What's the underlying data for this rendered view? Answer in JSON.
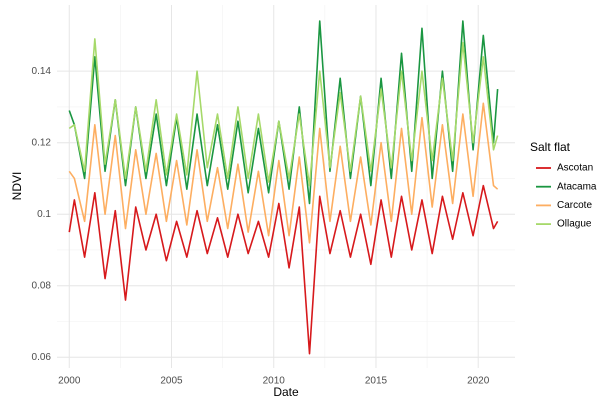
{
  "chart_data": {
    "type": "line",
    "x_label": "Date",
    "y_label": "NDVI",
    "legend_title": "Salt flat",
    "legend_position": "right",
    "grid": true,
    "x": [
      2000,
      2000.25,
      2000.75,
      2001.25,
      2001.75,
      2002.25,
      2002.75,
      2003.25,
      2003.75,
      2004.25,
      2004.75,
      2005.25,
      2005.75,
      2006.25,
      2006.75,
      2007.25,
      2007.75,
      2008.25,
      2008.75,
      2009.25,
      2009.75,
      2010.25,
      2010.75,
      2011.25,
      2011.75,
      2012.25,
      2012.75,
      2013.25,
      2013.75,
      2014.25,
      2014.75,
      2015.25,
      2015.75,
      2016.25,
      2016.75,
      2017.25,
      2017.75,
      2018.25,
      2018.75,
      2019.25,
      2019.75,
      2020.25,
      2020.75,
      2020.95
    ],
    "series": [
      {
        "name": "Ascotan",
        "color": "#d7191c",
        "values": [
          0.095,
          0.104,
          0.088,
          0.106,
          0.082,
          0.101,
          0.076,
          0.102,
          0.09,
          0.1,
          0.087,
          0.098,
          0.088,
          0.101,
          0.089,
          0.099,
          0.088,
          0.1,
          0.089,
          0.098,
          0.088,
          0.103,
          0.085,
          0.102,
          0.061,
          0.105,
          0.089,
          0.101,
          0.088,
          0.1,
          0.086,
          0.104,
          0.088,
          0.105,
          0.09,
          0.104,
          0.089,
          0.105,
          0.093,
          0.106,
          0.094,
          0.108,
          0.096,
          0.098
        ]
      },
      {
        "name": "Atacama",
        "color": "#1a9641",
        "values": [
          0.129,
          0.125,
          0.11,
          0.144,
          0.112,
          0.132,
          0.108,
          0.13,
          0.11,
          0.128,
          0.108,
          0.127,
          0.107,
          0.128,
          0.108,
          0.125,
          0.107,
          0.126,
          0.106,
          0.124,
          0.106,
          0.126,
          0.107,
          0.13,
          0.103,
          0.154,
          0.112,
          0.138,
          0.11,
          0.133,
          0.108,
          0.138,
          0.11,
          0.145,
          0.112,
          0.152,
          0.11,
          0.14,
          0.112,
          0.154,
          0.118,
          0.15,
          0.12,
          0.135
        ]
      },
      {
        "name": "Carcote",
        "color": "#fdae61",
        "values": [
          0.112,
          0.11,
          0.098,
          0.125,
          0.1,
          0.122,
          0.096,
          0.118,
          0.1,
          0.117,
          0.098,
          0.115,
          0.097,
          0.118,
          0.098,
          0.113,
          0.096,
          0.114,
          0.095,
          0.112,
          0.094,
          0.115,
          0.094,
          0.116,
          0.092,
          0.124,
          0.098,
          0.119,
          0.098,
          0.116,
          0.097,
          0.12,
          0.098,
          0.124,
          0.1,
          0.127,
          0.102,
          0.125,
          0.103,
          0.128,
          0.105,
          0.131,
          0.108,
          0.107
        ]
      },
      {
        "name": "Ollague",
        "color": "#a6d96a",
        "values": [
          0.124,
          0.125,
          0.112,
          0.149,
          0.114,
          0.132,
          0.11,
          0.13,
          0.112,
          0.132,
          0.111,
          0.128,
          0.111,
          0.14,
          0.113,
          0.128,
          0.11,
          0.13,
          0.11,
          0.128,
          0.109,
          0.126,
          0.11,
          0.128,
          0.108,
          0.14,
          0.113,
          0.134,
          0.112,
          0.133,
          0.112,
          0.135,
          0.113,
          0.14,
          0.115,
          0.14,
          0.115,
          0.138,
          0.115,
          0.148,
          0.12,
          0.144,
          0.118,
          0.122
        ]
      }
    ],
    "xlim": [
      1999.4,
      2021.8
    ],
    "xticks": [
      2000,
      2005,
      2010,
      2015,
      2020
    ],
    "ylim": [
      0.057,
      0.1585
    ],
    "yticks": [
      0.06,
      0.08,
      0.1,
      {
        "value": 0.12,
        "label": "0.12"
      },
      0.14
    ]
  }
}
